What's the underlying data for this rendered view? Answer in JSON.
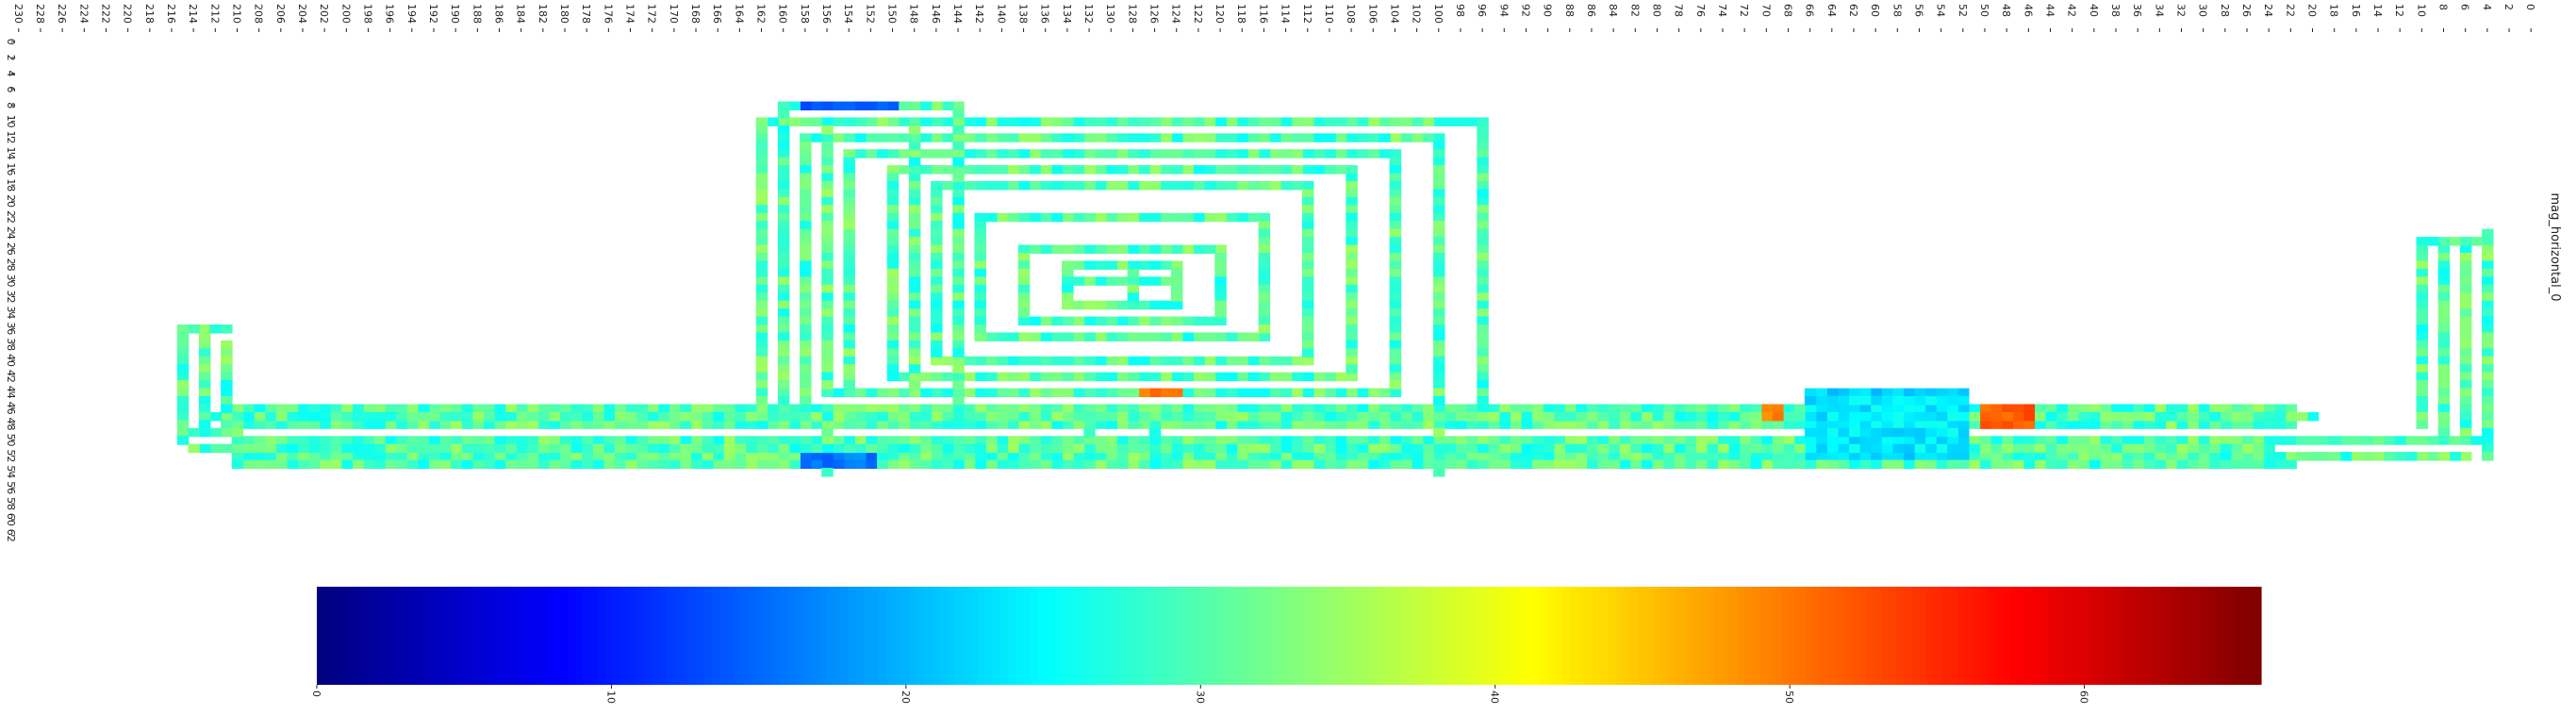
{
  "chart_data": [
    {
      "type": "heatmap",
      "title": "mag_horizontal_0",
      "x_axis": {
        "tick_labels": [
          "0",
          "2",
          "4",
          "6",
          "8",
          "10",
          "12",
          "14",
          "16",
          "18",
          "20",
          "22",
          "24",
          "26",
          "28",
          "30",
          "32",
          "34",
          "36",
          "38",
          "40",
          "42",
          "44",
          "46",
          "48",
          "50",
          "52",
          "54",
          "56",
          "58",
          "60",
          "62",
          "64",
          "66",
          "68",
          "70",
          "72",
          "74",
          "76",
          "78",
          "80",
          "82",
          "84",
          "86",
          "88",
          "90",
          "92",
          "94",
          "96",
          "98",
          "100",
          "102",
          "104",
          "106",
          "108",
          "110",
          "112",
          "114",
          "116",
          "118",
          "120",
          "122",
          "124",
          "126",
          "128",
          "130",
          "132",
          "134",
          "136",
          "138",
          "140",
          "142",
          "144",
          "146",
          "148",
          "150",
          "152",
          "154",
          "156",
          "158",
          "160",
          "162",
          "164",
          "166",
          "168",
          "170",
          "172",
          "174",
          "176",
          "178",
          "180",
          "182",
          "184",
          "186",
          "188",
          "190",
          "192",
          "194",
          "196",
          "198",
          "200",
          "202",
          "204",
          "206",
          "208",
          "210",
          "212",
          "214",
          "216",
          "218",
          "220",
          "222",
          "224",
          "226",
          "228",
          "230"
        ],
        "direction": "reversed",
        "range": [
          0,
          231
        ]
      },
      "y_axis": {
        "tick_labels": [
          "0",
          "2",
          "4",
          "6",
          "8",
          "10",
          "12",
          "14",
          "16",
          "18",
          "20",
          "22",
          "24",
          "26",
          "28",
          "30",
          "32",
          "34",
          "36",
          "38",
          "40",
          "42",
          "44",
          "46",
          "48",
          "50",
          "52",
          "54",
          "56",
          "58",
          "60",
          "62"
        ],
        "range": [
          0,
          63
        ]
      },
      "color_scale": "jet",
      "value_range": [
        0,
        66
      ],
      "track_description": "closed-loop magnetometer traces with nested rectangular loops; regions of low values (blue) near x 52-66 and 150-158; high values (orange/red) near x 46-50, 69-70, 124-127",
      "highlights": [
        {
          "x_range": [
            52,
            66
          ],
          "y_range": [
            44,
            52
          ],
          "value": 22
        },
        {
          "x_range": [
            46,
            50
          ],
          "y_range": [
            46,
            48
          ],
          "value": 52
        },
        {
          "x_range": [
            69,
            70
          ],
          "y_range": [
            46,
            47
          ],
          "value": 50
        },
        {
          "x_range": [
            124,
            127
          ],
          "y_range": [
            43,
            44
          ],
          "value": 50
        },
        {
          "x_range": [
            150,
            158
          ],
          "y_range": [
            8,
            9
          ],
          "value": 14
        },
        {
          "x_range": [
            152,
            158
          ],
          "y_range": [
            52,
            53
          ],
          "value": 16
        }
      ]
    },
    {
      "type": "colorbar",
      "orientation": "horizontal",
      "color_scale": "jet",
      "range": [
        0,
        66
      ],
      "tick_values": [
        0,
        10,
        20,
        30,
        40,
        50,
        60
      ],
      "tick_labels": [
        "0",
        "10",
        "20",
        "30",
        "40",
        "50",
        "60"
      ]
    }
  ]
}
